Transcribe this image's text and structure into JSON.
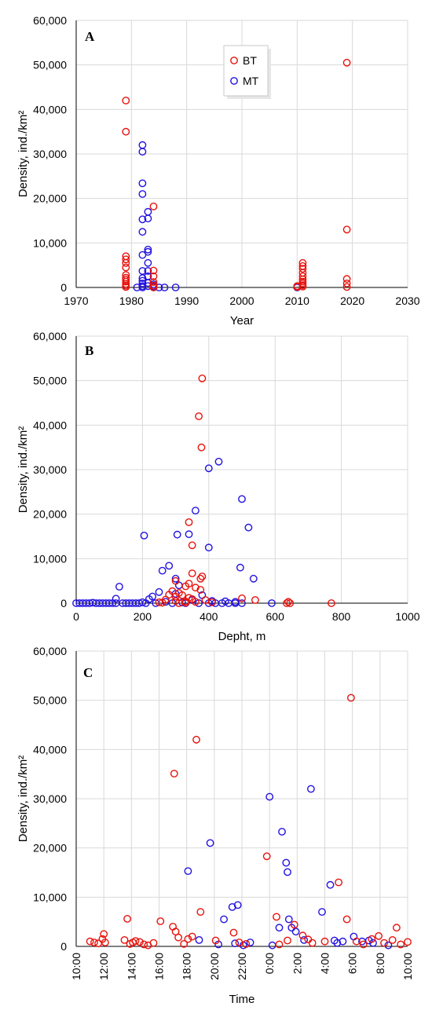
{
  "colors": {
    "BT": "#e8120c",
    "MT": "#2212e0"
  },
  "legend": {
    "bt_label": "BT",
    "mt_label": "MT"
  },
  "chart_data": [
    {
      "type": "scatter",
      "panel": "A",
      "xlabel": "Year",
      "ylabel": "Density, ind./km²",
      "xlim": [
        1970,
        2030
      ],
      "ylim": [
        0,
        60000
      ],
      "xticks": [
        "1970",
        "1980",
        "1990",
        "2000",
        "2010",
        "2020",
        "2030"
      ],
      "yticks": [
        "0",
        "10,000",
        "20,000",
        "30,000",
        "40,000",
        "50,000",
        "60,000"
      ],
      "legend_position": "top-center",
      "series": [
        {
          "name": "BT",
          "points": [
            [
              1979,
              42000
            ],
            [
              1979,
              35000
            ],
            [
              1979,
              7000
            ],
            [
              1979,
              6300
            ],
            [
              1979,
              5500
            ],
            [
              1979,
              4500
            ],
            [
              1979,
              2800
            ],
            [
              1979,
              2200
            ],
            [
              1979,
              1800
            ],
            [
              1979,
              1300
            ],
            [
              1979,
              800
            ],
            [
              1979,
              400
            ],
            [
              1979,
              100
            ],
            [
              1984,
              18200
            ],
            [
              1984,
              3800
            ],
            [
              1984,
              2500
            ],
            [
              1984,
              1200
            ],
            [
              1984,
              400
            ],
            [
              1984,
              0
            ],
            [
              2011,
              5500
            ],
            [
              2011,
              4800
            ],
            [
              2011,
              4200
            ],
            [
              2011,
              3300
            ],
            [
              2011,
              2500
            ],
            [
              2011,
              1800
            ],
            [
              2011,
              1300
            ],
            [
              2011,
              900
            ],
            [
              2011,
              500
            ],
            [
              2011,
              200
            ],
            [
              2010,
              300
            ],
            [
              2010,
              100
            ],
            [
              2019,
              50500
            ],
            [
              2019,
              13000
            ],
            [
              2019,
              1900
            ],
            [
              2019,
              900
            ],
            [
              2019,
              100
            ]
          ]
        },
        {
          "name": "MT",
          "points": [
            [
              1982,
              32000
            ],
            [
              1982,
              30500
            ],
            [
              1982,
              23400
            ],
            [
              1982,
              21000
            ],
            [
              1982,
              15300
            ],
            [
              1982,
              12500
            ],
            [
              1982,
              7300
            ],
            [
              1982,
              3700
            ],
            [
              1982,
              2100
            ],
            [
              1982,
              1500
            ],
            [
              1982,
              900
            ],
            [
              1982,
              300
            ],
            [
              1982,
              0
            ],
            [
              1983,
              17000
            ],
            [
              1983,
              15500
            ],
            [
              1983,
              8500
            ],
            [
              1983,
              8000
            ],
            [
              1983,
              5500
            ],
            [
              1983,
              3700
            ],
            [
              1983,
              2500
            ],
            [
              1983,
              1000
            ],
            [
              1983,
              300
            ],
            [
              1981,
              0
            ],
            [
              1984,
              700
            ],
            [
              1984,
              200
            ],
            [
              1985,
              0
            ],
            [
              1986,
              0
            ],
            [
              1988,
              0
            ],
            [
              2010,
              0
            ]
          ]
        }
      ]
    },
    {
      "type": "scatter",
      "panel": "B",
      "xlabel": "Depht, m",
      "ylabel": "Density, ind./km²",
      "xlim": [
        0,
        1000
      ],
      "ylim": [
        0,
        60000
      ],
      "xticks": [
        "0",
        "200",
        "400",
        "600",
        "800",
        "1000"
      ],
      "yticks": [
        "0",
        "10,000",
        "20,000",
        "30,000",
        "40,000",
        "50,000",
        "60,000"
      ],
      "series": [
        {
          "name": "BT",
          "points": [
            [
              380,
              50500
            ],
            [
              370,
              42000
            ],
            [
              378,
              35000
            ],
            [
              340,
              18200
            ],
            [
              350,
              13000
            ],
            [
              350,
              6700
            ],
            [
              380,
              6000
            ],
            [
              375,
              5500
            ],
            [
              300,
              5000
            ],
            [
              340,
              4400
            ],
            [
              330,
              3800
            ],
            [
              360,
              3500
            ],
            [
              375,
              3000
            ],
            [
              290,
              2700
            ],
            [
              310,
              2300
            ],
            [
              280,
              1900
            ],
            [
              320,
              1800
            ],
            [
              300,
              1500
            ],
            [
              340,
              1200
            ],
            [
              350,
              900
            ],
            [
              270,
              800
            ],
            [
              390,
              700
            ],
            [
              300,
              500
            ],
            [
              330,
              400
            ],
            [
              360,
              300
            ],
            [
              250,
              200
            ],
            [
              410,
              200
            ],
            [
              500,
              1100
            ],
            [
              540,
              700
            ],
            [
              640,
              300
            ],
            [
              635,
              0
            ],
            [
              645,
              0
            ],
            [
              770,
              0
            ],
            [
              310,
              0
            ],
            [
              330,
              100
            ],
            [
              260,
              100
            ]
          ]
        },
        {
          "name": "MT",
          "points": [
            [
              430,
              31800
            ],
            [
              400,
              30300
            ],
            [
              500,
              23400
            ],
            [
              360,
              20800
            ],
            [
              520,
              17000
            ],
            [
              205,
              15200
            ],
            [
              305,
              15400
            ],
            [
              340,
              15500
            ],
            [
              400,
              12500
            ],
            [
              280,
              8400
            ],
            [
              495,
              8000
            ],
            [
              260,
              7300
            ],
            [
              535,
              5500
            ],
            [
              300,
              5500
            ],
            [
              310,
              4000
            ],
            [
              130,
              3700
            ],
            [
              250,
              2500
            ],
            [
              300,
              2100
            ],
            [
              380,
              1800
            ],
            [
              230,
              1500
            ],
            [
              120,
              1000
            ],
            [
              220,
              900
            ],
            [
              350,
              700
            ],
            [
              410,
              500
            ],
            [
              450,
              400
            ],
            [
              480,
              300
            ],
            [
              270,
              300
            ],
            [
              200,
              200
            ],
            [
              320,
              150
            ],
            [
              0,
              0
            ],
            [
              10,
              0
            ],
            [
              20,
              0
            ],
            [
              30,
              0
            ],
            [
              40,
              0
            ],
            [
              50,
              100
            ],
            [
              60,
              0
            ],
            [
              70,
              0
            ],
            [
              80,
              0
            ],
            [
              90,
              0
            ],
            [
              100,
              0
            ],
            [
              110,
              0
            ],
            [
              120,
              0
            ],
            [
              140,
              0
            ],
            [
              150,
              0
            ],
            [
              160,
              0
            ],
            [
              170,
              0
            ],
            [
              180,
              0
            ],
            [
              190,
              0
            ],
            [
              210,
              0
            ],
            [
              240,
              0
            ],
            [
              290,
              0
            ],
            [
              330,
              0
            ],
            [
              370,
              0
            ],
            [
              400,
              0
            ],
            [
              420,
              0
            ],
            [
              440,
              0
            ],
            [
              460,
              0
            ],
            [
              480,
              0
            ],
            [
              500,
              0
            ],
            [
              590,
              0
            ]
          ]
        }
      ]
    },
    {
      "type": "scatter",
      "panel": "C",
      "xlabel": "Time",
      "ylabel": "Density, ind./km²",
      "xlim": [
        0,
        24
      ],
      "ylim": [
        0,
        60000
      ],
      "xticks": [
        "10:00",
        "12:00",
        "14:00",
        "16:00",
        "18:00",
        "20:00",
        "22:00",
        "0:00",
        "2:00",
        "4:00",
        "6:00",
        "8:00",
        "10:00"
      ],
      "yticks": [
        "0",
        "10,000",
        "20,000",
        "30,000",
        "40,000",
        "50,000",
        "60,000"
      ],
      "series": [
        {
          "name": "BT",
          "points": [
            [
              1.0,
              1000
            ],
            [
              1.3,
              800
            ],
            [
              1.6,
              600
            ],
            [
              1.9,
              1500
            ],
            [
              2.0,
              2500
            ],
            [
              2.1,
              800
            ],
            [
              3.5,
              1300
            ],
            [
              3.7,
              5600
            ],
            [
              3.9,
              500
            ],
            [
              4.1,
              800
            ],
            [
              4.3,
              1100
            ],
            [
              4.6,
              900
            ],
            [
              4.9,
              400
            ],
            [
              5.2,
              200
            ],
            [
              5.6,
              700
            ],
            [
              6.1,
              5100
            ],
            [
              7.0,
              4000
            ],
            [
              7.1,
              35100
            ],
            [
              7.2,
              3000
            ],
            [
              7.4,
              1800
            ],
            [
              7.8,
              500
            ],
            [
              8.1,
              1500
            ],
            [
              8.4,
              2000
            ],
            [
              8.7,
              42000
            ],
            [
              9.0,
              7000
            ],
            [
              10.1,
              1200
            ],
            [
              11.4,
              2800
            ],
            [
              11.8,
              800
            ],
            [
              12.3,
              500
            ],
            [
              13.8,
              18300
            ],
            [
              14.5,
              6000
            ],
            [
              14.7,
              400
            ],
            [
              15.3,
              1200
            ],
            [
              15.8,
              4400
            ],
            [
              16.4,
              2200
            ],
            [
              16.8,
              1400
            ],
            [
              17.1,
              700
            ],
            [
              18.0,
              1000
            ],
            [
              19.0,
              13000
            ],
            [
              19.6,
              5500
            ],
            [
              19.9,
              50500
            ],
            [
              20.3,
              1000
            ],
            [
              20.8,
              400
            ],
            [
              21.4,
              1500
            ],
            [
              21.9,
              2100
            ],
            [
              22.3,
              700
            ],
            [
              22.9,
              1300
            ],
            [
              23.2,
              3800
            ],
            [
              23.5,
              400
            ],
            [
              24.0,
              900
            ]
          ]
        },
        {
          "name": "MT",
          "points": [
            [
              8.1,
              15300
            ],
            [
              8.9,
              1300
            ],
            [
              9.7,
              21000
            ],
            [
              10.3,
              400
            ],
            [
              10.7,
              5500
            ],
            [
              11.3,
              8000
            ],
            [
              11.7,
              8400
            ],
            [
              11.5,
              600
            ],
            [
              12.1,
              200
            ],
            [
              12.6,
              800
            ],
            [
              14.0,
              30400
            ],
            [
              14.2,
              200
            ],
            [
              14.7,
              3800
            ],
            [
              14.9,
              23300
            ],
            [
              15.2,
              17000
            ],
            [
              15.3,
              15100
            ],
            [
              15.4,
              5500
            ],
            [
              15.6,
              3800
            ],
            [
              15.9,
              3000
            ],
            [
              16.5,
              1300
            ],
            [
              17.0,
              32000
            ],
            [
              17.8,
              7000
            ],
            [
              18.4,
              12500
            ],
            [
              18.7,
              1200
            ],
            [
              18.9,
              700
            ],
            [
              19.3,
              1000
            ],
            [
              20.1,
              2000
            ],
            [
              20.7,
              1000
            ],
            [
              21.2,
              1200
            ],
            [
              21.5,
              700
            ],
            [
              22.6,
              200
            ]
          ]
        }
      ]
    }
  ]
}
